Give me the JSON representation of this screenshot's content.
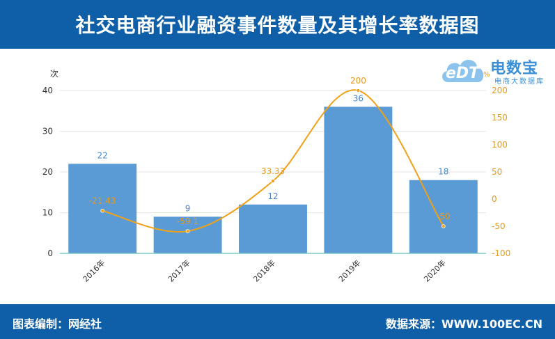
{
  "header": {
    "title": "社交电商行业融资事件数量及其增长率数据图"
  },
  "footer": {
    "left": "图表编制：网经社",
    "right": "数据来源：WWW.100EC.CN"
  },
  "logo": {
    "brand": "电数宝",
    "sub": "电商大数据库",
    "eng": "eDT"
  },
  "colors": {
    "header_bg": "#0f5fa8",
    "bar": "#5b9bd5",
    "line": "#f0a11a",
    "bar_label": "#4a86c8",
    "line_label": "#e79a1b"
  },
  "chart_data": {
    "type": "bar",
    "categories": [
      "2016年",
      "2017年",
      "2018年",
      "2019年",
      "2020年"
    ],
    "series": [
      {
        "type": "bar",
        "axis": "left",
        "values": [
          22,
          9,
          12,
          36,
          18
        ]
      },
      {
        "type": "line",
        "axis": "right",
        "values": [
          -21.43,
          -59.1,
          33.33,
          200,
          -50
        ],
        "labels": [
          "-21.43",
          "-59.1",
          "33.33",
          "200",
          "-50"
        ]
      }
    ],
    "y_left": {
      "label": "次",
      "ylim": [
        0,
        40
      ],
      "ticks": [
        0,
        10,
        20,
        30,
        40
      ]
    },
    "y_right": {
      "label": "%",
      "ylim": [
        -100,
        200
      ],
      "ticks": [
        -100,
        -50,
        0,
        50,
        100,
        150,
        200
      ]
    },
    "grid": true
  }
}
